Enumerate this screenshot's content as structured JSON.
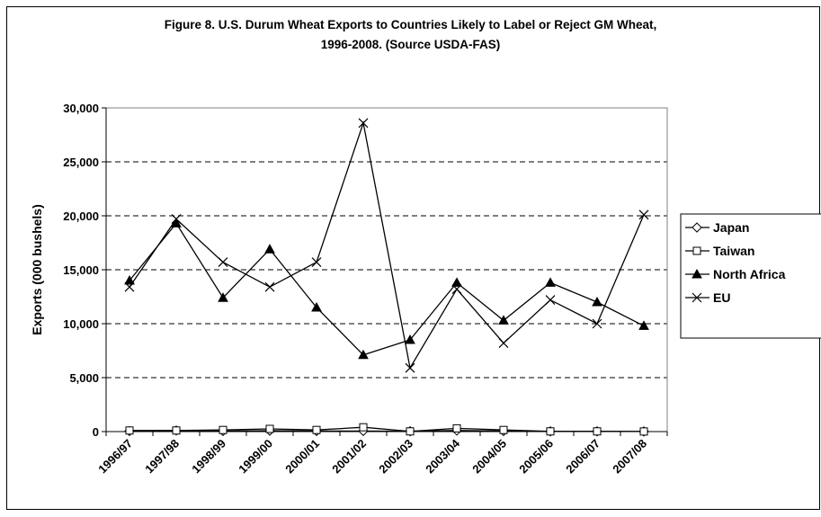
{
  "chart_data": {
    "type": "line",
    "title_line1": "Figure 8. U.S. Durum Wheat Exports to Countries Likely to Label or Reject GM Wheat,",
    "title_line2": "1996-2008. (Source USDA-FAS)",
    "ylabel": "Exports (000 bushels)",
    "xlabel": "",
    "categories": [
      "1996/97",
      "1997/98",
      "1998/99",
      "1999/00",
      "2000/01",
      "2001/02",
      "2002/03",
      "2003/04",
      "2004/05",
      "2005/06",
      "2006/07",
      "2007/08"
    ],
    "ylim": [
      0,
      30000
    ],
    "yticks": [
      "0",
      "5,000",
      "10,000",
      "15,000",
      "20,000",
      "25,000",
      "30,000"
    ],
    "grid": "horizontal dashed",
    "legend_position": "right",
    "series": [
      {
        "name": "Japan",
        "marker": "diamond-open",
        "values": [
          50,
          100,
          50,
          80,
          50,
          50,
          30,
          100,
          50,
          20,
          20,
          10
        ]
      },
      {
        "name": "Taiwan",
        "marker": "square-open",
        "values": [
          100,
          100,
          150,
          250,
          150,
          400,
          20,
          300,
          150,
          20,
          20,
          10
        ]
      },
      {
        "name": "North Africa",
        "marker": "triangle-filled",
        "values": [
          14000,
          19300,
          12400,
          16900,
          11500,
          7100,
          8500,
          13800,
          10300,
          13800,
          12000,
          9800
        ]
      },
      {
        "name": "EU",
        "marker": "x",
        "values": [
          13400,
          19700,
          15700,
          13400,
          15700,
          28600,
          5900,
          13200,
          8200,
          12200,
          10000,
          20100
        ]
      }
    ]
  }
}
